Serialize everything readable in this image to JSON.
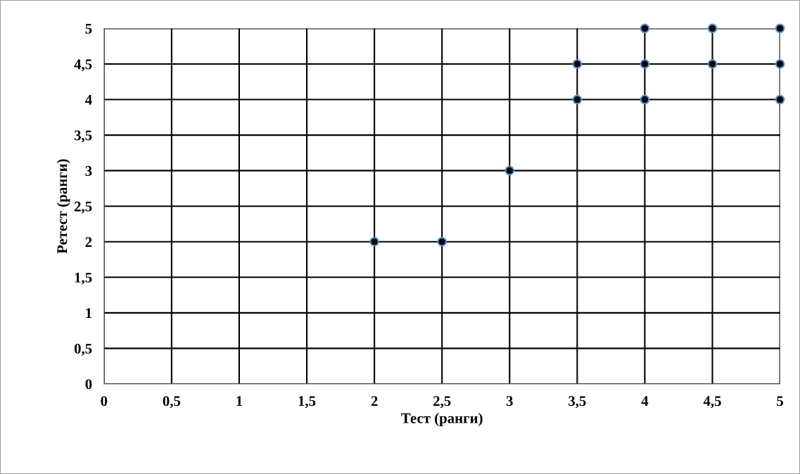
{
  "chart_data": {
    "type": "scatter",
    "xlabel": "Тест (ранги)",
    "ylabel": "Ретест (ранги)",
    "x": [
      2,
      2.5,
      3,
      3.5,
      3.5,
      4,
      4,
      4,
      4.5,
      4.5,
      5,
      5,
      5
    ],
    "values": [
      2,
      2,
      3,
      4,
      4.5,
      4,
      4.5,
      5,
      4.5,
      5,
      4,
      4.5,
      5
    ],
    "color": "#0a0a0a",
    "marker": "circle",
    "grid": true,
    "legend": false,
    "xlim": [
      0,
      5
    ],
    "ylim": [
      0,
      5
    ],
    "xticks": [
      0,
      {
        "value": 0.5,
        "label": "0,5"
      },
      1,
      {
        "value": 1.5,
        "label": "1,5"
      },
      2,
      {
        "value": 2.5,
        "label": "2,5"
      },
      3,
      {
        "value": 3.5,
        "label": "3,5"
      },
      4,
      {
        "value": 4.5,
        "label": "4,5"
      },
      5
    ],
    "yticks": [
      0,
      {
        "value": 0.5,
        "label": "0,5"
      },
      1,
      {
        "value": 1.5,
        "label": "1,5"
      },
      2,
      {
        "value": 2.5,
        "label": "2,5"
      },
      3,
      {
        "value": 3.5,
        "label": "3,5"
      },
      4,
      {
        "value": 4.5,
        "label": "4,5"
      },
      5
    ]
  }
}
